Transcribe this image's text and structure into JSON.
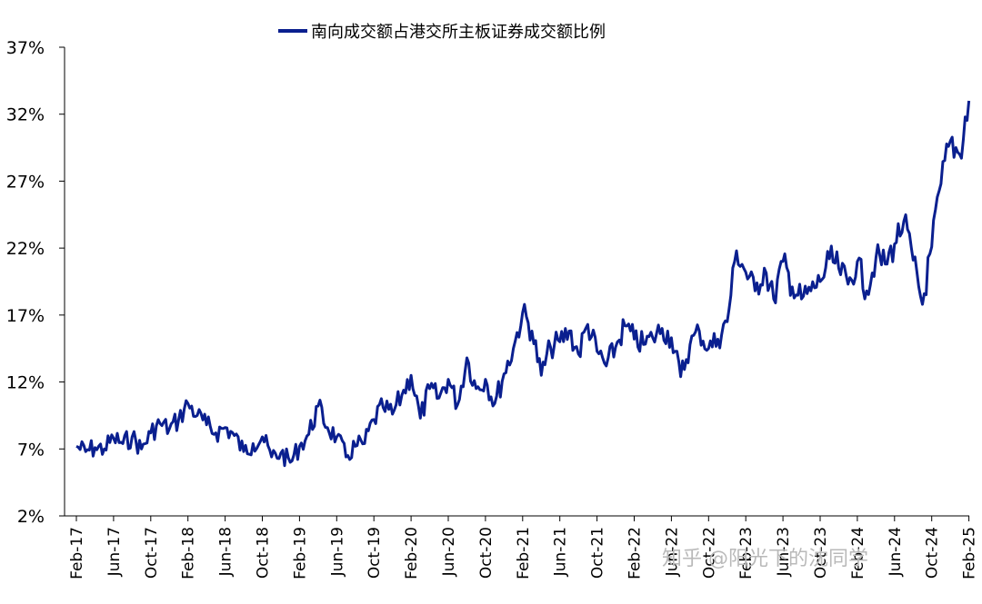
{
  "chart_data": {
    "type": "line",
    "title": "",
    "xlabel": "",
    "ylabel": "",
    "legend": {
      "placement": "top-center",
      "entries": [
        "南向成交额占港交所主板证券成交额比例"
      ]
    },
    "grid": false,
    "ylim": [
      0.02,
      0.37
    ],
    "yticks": [
      "2%",
      "7%",
      "12%",
      "17%",
      "22%",
      "27%",
      "32%",
      "37%"
    ],
    "yticks_values": [
      0.02,
      0.07,
      0.12,
      0.17,
      0.22,
      0.27,
      0.32,
      0.37
    ],
    "xticks": [
      "Feb-17",
      "Jun-17",
      "Oct-17",
      "Feb-18",
      "Jun-18",
      "Oct-18",
      "Feb-19",
      "Jun-19",
      "Oct-19",
      "Feb-20",
      "Jun-20",
      "Oct-20",
      "Feb-21",
      "Jun-21",
      "Oct-21",
      "Feb-22",
      "Jun-22",
      "Oct-22",
      "Feb-23",
      "Jun-23",
      "Oct-23",
      "Feb-24",
      "Jun-24",
      "Oct-24",
      "Feb-25"
    ],
    "series": [
      {
        "name": "南向成交额占港交所主板证券成交额比例",
        "color": "#0a1f8f",
        "x": [
          "2017-02",
          "2017-03",
          "2017-04",
          "2017-05",
          "2017-06",
          "2017-07",
          "2017-08",
          "2017-09",
          "2017-10",
          "2017-11",
          "2017-12",
          "2018-01",
          "2018-02",
          "2018-03",
          "2018-04",
          "2018-05",
          "2018-06",
          "2018-07",
          "2018-08",
          "2018-09",
          "2018-10",
          "2018-11",
          "2018-12",
          "2019-01",
          "2019-02",
          "2019-03",
          "2019-04",
          "2019-05",
          "2019-06",
          "2019-07",
          "2019-08",
          "2019-09",
          "2019-10",
          "2019-11",
          "2019-12",
          "2020-01",
          "2020-02",
          "2020-03",
          "2020-04",
          "2020-05",
          "2020-06",
          "2020-07",
          "2020-08",
          "2020-09",
          "2020-10",
          "2020-11",
          "2020-12",
          "2021-01",
          "2021-02",
          "2021-03",
          "2021-04",
          "2021-05",
          "2021-06",
          "2021-07",
          "2021-08",
          "2021-09",
          "2021-10",
          "2021-11",
          "2021-12",
          "2022-01",
          "2022-02",
          "2022-03",
          "2022-04",
          "2022-05",
          "2022-06",
          "2022-07",
          "2022-08",
          "2022-09",
          "2022-10",
          "2022-11",
          "2022-12",
          "2023-01",
          "2023-02",
          "2023-03",
          "2023-04",
          "2023-05",
          "2023-06",
          "2023-07",
          "2023-08",
          "2023-09",
          "2023-10",
          "2023-11",
          "2023-12",
          "2024-01",
          "2024-02",
          "2024-03",
          "2024-04",
          "2024-05",
          "2024-06",
          "2024-07",
          "2024-08",
          "2024-09",
          "2024-10",
          "2024-11",
          "2024-12",
          "2025-01",
          "2025-02"
        ],
        "values": [
          0.072,
          0.068,
          0.071,
          0.07,
          0.078,
          0.074,
          0.079,
          0.07,
          0.082,
          0.089,
          0.085,
          0.092,
          0.104,
          0.095,
          0.088,
          0.082,
          0.086,
          0.08,
          0.068,
          0.074,
          0.079,
          0.064,
          0.067,
          0.06,
          0.072,
          0.081,
          0.102,
          0.086,
          0.079,
          0.064,
          0.072,
          0.074,
          0.092,
          0.101,
          0.096,
          0.11,
          0.125,
          0.093,
          0.115,
          0.108,
          0.122,
          0.103,
          0.138,
          0.115,
          0.122,
          0.104,
          0.126,
          0.145,
          0.172,
          0.158,
          0.125,
          0.146,
          0.15,
          0.158,
          0.141,
          0.163,
          0.143,
          0.132,
          0.146,
          0.162,
          0.152,
          0.148,
          0.153,
          0.16,
          0.153,
          0.124,
          0.148,
          0.158,
          0.145,
          0.152,
          0.165,
          0.218,
          0.202,
          0.188,
          0.205,
          0.182,
          0.21,
          0.191,
          0.182,
          0.188,
          0.195,
          0.212,
          0.205,
          0.193,
          0.21,
          0.188,
          0.213,
          0.208,
          0.223,
          0.24,
          0.211,
          0.178,
          0.221,
          0.268,
          0.3,
          0.29,
          0.33
        ]
      }
    ]
  },
  "watermark": "知乎 @阳光下的沈同学"
}
